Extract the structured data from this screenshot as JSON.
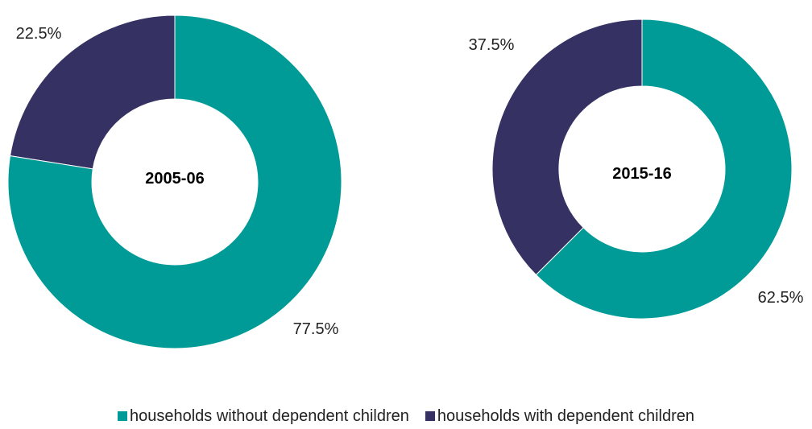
{
  "chart_data": [
    {
      "type": "pie",
      "center_label": "2005-06",
      "slices": [
        {
          "name": "households without dependent children",
          "value": 77.5,
          "label": "77.5%",
          "color": "#009b96"
        },
        {
          "name": "households with dependent children",
          "value": 22.5,
          "label": "22.5%",
          "color": "#353263"
        }
      ]
    },
    {
      "type": "pie",
      "center_label": "2015-16",
      "slices": [
        {
          "name": "households without dependent children",
          "value": 62.5,
          "label": "62.5%",
          "color": "#009b96"
        },
        {
          "name": "households with dependent children",
          "value": 37.5,
          "label": "37.5%",
          "color": "#353263"
        }
      ]
    }
  ],
  "legend": [
    {
      "label": "households without dependent children",
      "color": "#009b96"
    },
    {
      "label": "households with dependent children",
      "color": "#353263"
    }
  ]
}
